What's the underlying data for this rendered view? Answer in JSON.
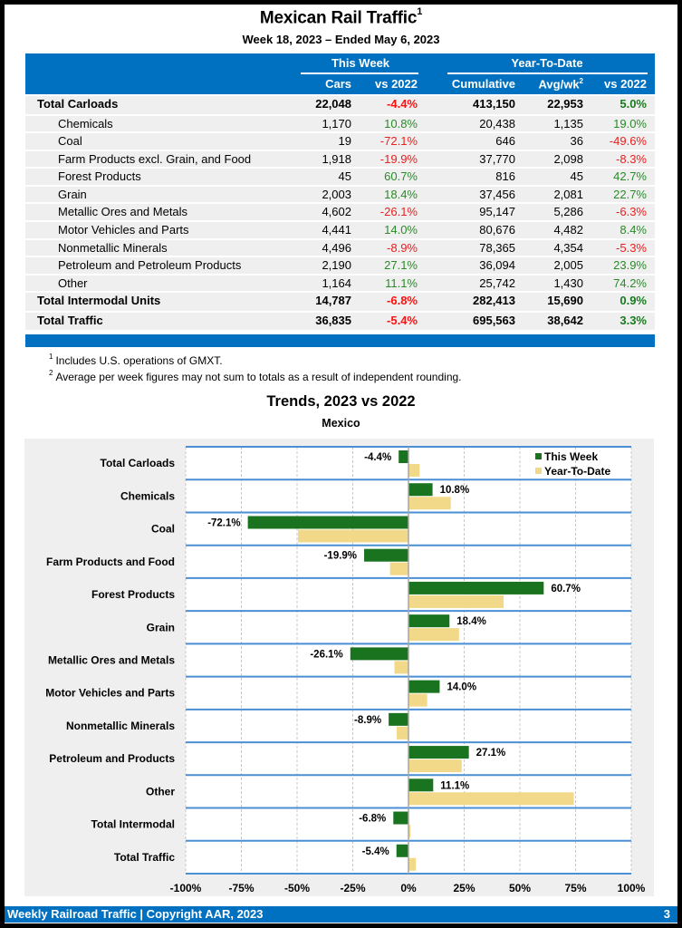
{
  "header": {
    "title": "Mexican Rail Traffic",
    "title_footnote": "1",
    "subtitle": "Week 18, 2023 – Ended May 6, 2023"
  },
  "table": {
    "group_headers": [
      "This Week",
      "Year-To-Date"
    ],
    "columns": [
      "Cars",
      "vs 2022",
      "Cumulative",
      "Avg/wk",
      "vs 2022"
    ],
    "avg_footnote": "2",
    "rows": [
      {
        "label": "Total Carloads",
        "bold": true,
        "cars": "22,048",
        "tw_vs": "-4.4%",
        "cum": "413,150",
        "avg": "22,953",
        "ytd_vs": "5.0%"
      },
      {
        "label": "Chemicals",
        "bold": false,
        "cars": "1,170",
        "tw_vs": "10.8%",
        "cum": "20,438",
        "avg": "1,135",
        "ytd_vs": "19.0%"
      },
      {
        "label": "Coal",
        "bold": false,
        "cars": "19",
        "tw_vs": "-72.1%",
        "cum": "646",
        "avg": "36",
        "ytd_vs": "-49.6%"
      },
      {
        "label": "Farm Products excl. Grain, and Food",
        "bold": false,
        "cars": "1,918",
        "tw_vs": "-19.9%",
        "cum": "37,770",
        "avg": "2,098",
        "ytd_vs": "-8.3%"
      },
      {
        "label": "Forest Products",
        "bold": false,
        "cars": "45",
        "tw_vs": "60.7%",
        "cum": "816",
        "avg": "45",
        "ytd_vs": "42.7%"
      },
      {
        "label": "Grain",
        "bold": false,
        "cars": "2,003",
        "tw_vs": "18.4%",
        "cum": "37,456",
        "avg": "2,081",
        "ytd_vs": "22.7%"
      },
      {
        "label": "Metallic Ores and Metals",
        "bold": false,
        "cars": "4,602",
        "tw_vs": "-26.1%",
        "cum": "95,147",
        "avg": "5,286",
        "ytd_vs": "-6.3%"
      },
      {
        "label": "Motor Vehicles and Parts",
        "bold": false,
        "cars": "4,441",
        "tw_vs": "14.0%",
        "cum": "80,676",
        "avg": "4,482",
        "ytd_vs": "8.4%"
      },
      {
        "label": "Nonmetallic Minerals",
        "bold": false,
        "cars": "4,496",
        "tw_vs": "-8.9%",
        "cum": "78,365",
        "avg": "4,354",
        "ytd_vs": "-5.3%"
      },
      {
        "label": "Petroleum and Petroleum Products",
        "bold": false,
        "cars": "2,190",
        "tw_vs": "27.1%",
        "cum": "36,094",
        "avg": "2,005",
        "ytd_vs": "23.9%"
      },
      {
        "label": "Other",
        "bold": false,
        "cars": "1,164",
        "tw_vs": "11.1%",
        "cum": "25,742",
        "avg": "1,430",
        "ytd_vs": "74.2%"
      },
      {
        "label": "Total Intermodal Units",
        "bold": true,
        "cars": "14,787",
        "tw_vs": "-6.8%",
        "cum": "282,413",
        "avg": "15,690",
        "ytd_vs": "0.9%"
      },
      {
        "label": "Total Traffic",
        "bold": true,
        "cars": "36,835",
        "tw_vs": "-5.4%",
        "cum": "695,563",
        "avg": "38,642",
        "ytd_vs": "3.3%"
      }
    ]
  },
  "notes": [
    {
      "mark": "1",
      "text": "Includes U.S. operations of GMXT."
    },
    {
      "mark": "2",
      "text": "Average per week figures may not sum to totals as a result of independent rounding."
    }
  ],
  "colors": {
    "brand_blue": "#0070c0",
    "this_week": "#1a731f",
    "ytd": "#f2d98a",
    "positive": "#2a8a2a",
    "negative": "#e82020"
  },
  "chart_data": {
    "type": "bar",
    "orientation": "horizontal",
    "title": "Trends, 2023 vs 2022",
    "subtitle": "Mexico",
    "xlabel": "",
    "ylabel": "",
    "xlim": [
      -100,
      100
    ],
    "xticks": [
      -100,
      -75,
      -50,
      -25,
      0,
      25,
      50,
      75,
      100
    ],
    "xtick_labels": [
      "-100%",
      "-75%",
      "-50%",
      "-25%",
      "0%",
      "25%",
      "50%",
      "75%",
      "100%"
    ],
    "grid": true,
    "legend_position": "top-right",
    "categories": [
      "Total Carloads",
      "Chemicals",
      "Coal",
      "Farm Products and Food",
      "Forest Products",
      "Grain",
      "Metallic Ores and Metals",
      "Motor Vehicles and Parts",
      "Nonmetallic Minerals",
      "Petroleum and Products",
      "Other",
      "Total Intermodal",
      "Total Traffic"
    ],
    "series": [
      {
        "name": "This Week",
        "values": [
          -4.4,
          10.8,
          -72.1,
          -19.9,
          60.7,
          18.4,
          -26.1,
          14.0,
          -8.9,
          27.1,
          11.1,
          -6.8,
          -5.4
        ],
        "labeled": true
      },
      {
        "name": "Year-To-Date",
        "values": [
          5.0,
          19.0,
          -49.6,
          -8.3,
          42.7,
          22.7,
          -6.3,
          8.4,
          -5.3,
          23.9,
          74.2,
          0.9,
          3.3
        ],
        "labeled": false
      }
    ]
  },
  "footer": {
    "text": "Weekly Railroad Traffic | Copyright AAR, 2023",
    "page": "3"
  }
}
